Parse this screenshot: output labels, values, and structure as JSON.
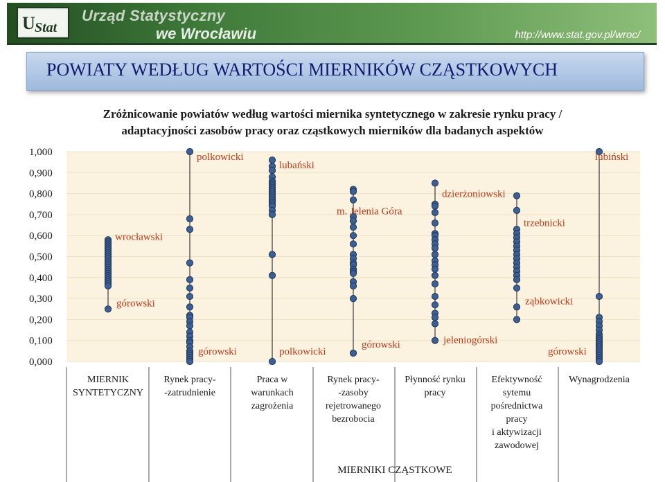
{
  "header": {
    "institution_line1": "Urząd Statystyczny",
    "institution_line2": "we Wrocławiu",
    "url": "http://www.stat.gov.pl/wroc/",
    "logo_text": "UStat"
  },
  "page_title": "POWIATY WEDŁUG WARTOŚCI MIERNIKÓW CZĄSTKOWYCH",
  "subtitle": [
    "Zróżnicowanie powiatów według wartości miernika syntetycznego w zakresie rynku pracy /",
    "adaptacyjności zasobów pracy oraz cząstkowych mierników dla badanych aspektów"
  ],
  "colors": {
    "banner": "#3f7a3a",
    "title_box": "#b3c9e8",
    "marker": "#3d5f94",
    "marker_edge": "#1e3556",
    "annotation": "#c0391b",
    "plot_bg": "#fbf3df"
  },
  "chart_data": {
    "type": "scatter",
    "ylim": [
      0,
      1
    ],
    "yticks": [
      "1,000",
      "0,900",
      "0,800",
      "0,700",
      "0,600",
      "0,500",
      "0,400",
      "0,300",
      "0,200",
      "0,100",
      "0,000"
    ],
    "xlabel": "MIERNIKI CZĄSTKOWE",
    "categories": [
      [
        "MIERNIK",
        "SYNTETYCZNY"
      ],
      [
        "Rynek pracy-",
        "-zatrudnienie"
      ],
      [
        "Praca w",
        "warunkach",
        "zagrożenia"
      ],
      [
        "Rynek pracy-",
        "-zasoby",
        "rejetrowanego",
        "bezrobocia"
      ],
      [
        "Płynność rynku",
        "pracy"
      ],
      [
        "Efektywność",
        "sytemu",
        "pośrednictwa",
        "pracy",
        "i aktywizacji",
        "zawodowej"
      ],
      [
        "Wynagrodzenia"
      ]
    ],
    "series": [
      {
        "values": [
          0.58,
          0.57,
          0.56,
          0.55,
          0.54,
          0.53,
          0.52,
          0.51,
          0.5,
          0.49,
          0.48,
          0.47,
          0.46,
          0.45,
          0.44,
          0.43,
          0.42,
          0.41,
          0.4,
          0.39,
          0.38,
          0.37,
          0.36,
          0.25
        ],
        "max_label": "wrocławski",
        "min_label": "górowski"
      },
      {
        "values": [
          1.0,
          0.68,
          0.63,
          0.47,
          0.39,
          0.35,
          0.31,
          0.26,
          0.22,
          0.21,
          0.19,
          0.17,
          0.14,
          0.12,
          0.1,
          0.09,
          0.07,
          0.05,
          0.04,
          0.03,
          0.02,
          0.01,
          0.0
        ],
        "max_label": "polkowicki",
        "min_label": "górowski"
      },
      {
        "values": [
          0.96,
          0.93,
          0.91,
          0.88,
          0.86,
          0.85,
          0.84,
          0.83,
          0.82,
          0.81,
          0.8,
          0.79,
          0.78,
          0.77,
          0.76,
          0.75,
          0.74,
          0.72,
          0.7,
          0.51,
          0.41,
          0.0
        ],
        "max_label": "lubański",
        "min_label": "polkowicki"
      },
      {
        "values": [
          0.82,
          0.81,
          0.77,
          0.69,
          0.67,
          0.64,
          0.6,
          0.56,
          0.51,
          0.49,
          0.47,
          0.46,
          0.44,
          0.43,
          0.42,
          0.38,
          0.36,
          0.3,
          0.04
        ],
        "max_label": "m. Jelenia Góra",
        "min_label": "górowski"
      },
      {
        "values": [
          0.85,
          0.75,
          0.74,
          0.71,
          0.66,
          0.61,
          0.6,
          0.58,
          0.56,
          0.54,
          0.51,
          0.48,
          0.46,
          0.44,
          0.41,
          0.37,
          0.31,
          0.27,
          0.23,
          0.21,
          0.18,
          0.1
        ],
        "max_label": "dzierżoniowski",
        "min_label": "jeleniogórski"
      },
      {
        "values": [
          0.79,
          0.72,
          0.63,
          0.61,
          0.59,
          0.57,
          0.55,
          0.53,
          0.51,
          0.49,
          0.47,
          0.45,
          0.43,
          0.41,
          0.39,
          0.35,
          0.26,
          0.2
        ],
        "max_label": "trzebnicki",
        "min_label": "ząbkowicki"
      },
      {
        "values": [
          1.0,
          0.31,
          0.21,
          0.19,
          0.17,
          0.15,
          0.13,
          0.12,
          0.11,
          0.1,
          0.09,
          0.08,
          0.07,
          0.06,
          0.05,
          0.04,
          0.03,
          0.02,
          0.01,
          0.0
        ],
        "max_label": "lubiński",
        "min_label": "górowski"
      }
    ]
  }
}
